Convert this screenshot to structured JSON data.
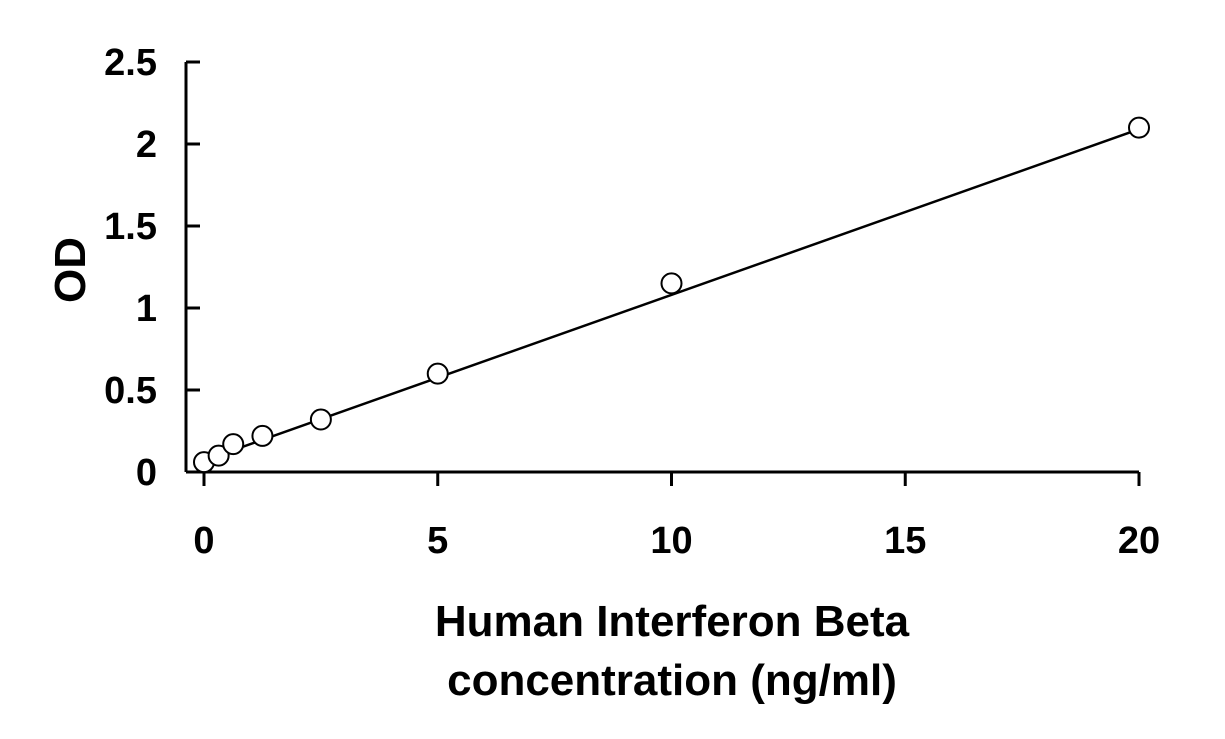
{
  "chart_data": {
    "type": "scatter",
    "title": "",
    "ylabel": "OD",
    "xlabel_lines": [
      "Human Interferon Beta",
      "concentration (ng/ml)"
    ],
    "xlim": [
      0,
      20
    ],
    "ylim": [
      0,
      2.5
    ],
    "x_ticks": [
      0,
      5,
      10,
      15,
      20
    ],
    "y_ticks": [
      0,
      0.5,
      1,
      1.5,
      2,
      2.5
    ],
    "x_tick_labels": [
      "0",
      "5",
      "10",
      "15",
      "20"
    ],
    "y_tick_labels": [
      "0",
      "0.5",
      "1",
      "1.5",
      "2",
      "2.5"
    ],
    "grid": false,
    "legend": "none",
    "series": [
      {
        "x": [
          0,
          0.313,
          0.625,
          1.25,
          2.5,
          5,
          10,
          20
        ],
        "y": [
          0.06,
          0.1,
          0.17,
          0.22,
          0.32,
          0.6,
          1.15,
          2.1
        ],
        "marker": "open-circle",
        "color": "#000000"
      }
    ],
    "fit_line": {
      "x": [
        0,
        20
      ],
      "y": [
        0.07,
        2.09
      ]
    }
  }
}
